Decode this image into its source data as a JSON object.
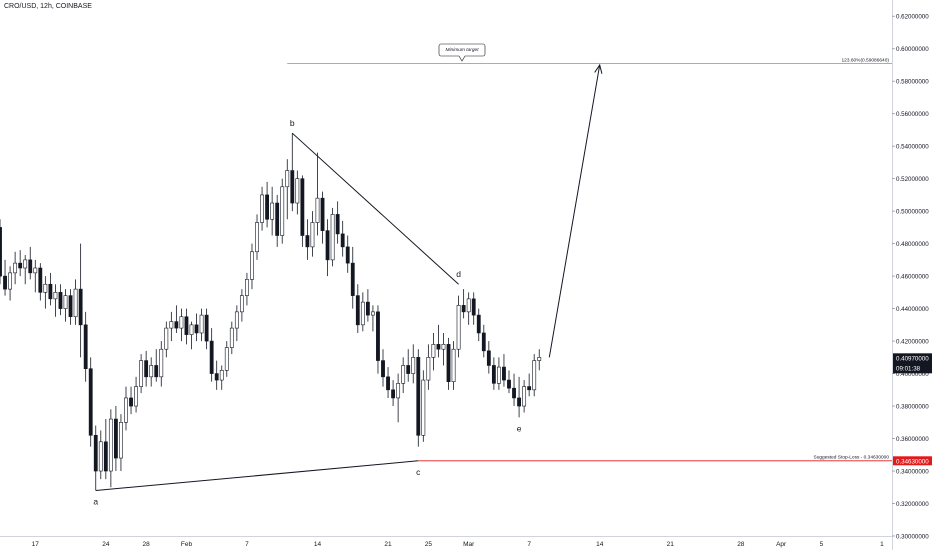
{
  "header": {
    "symbol_label": "CRO/USD, 12h, COINBASE"
  },
  "chart_data": {
    "type": "candlestick",
    "symbol": "CRO/USD",
    "interval": "12h",
    "exchange": "COINBASE",
    "y_axis": {
      "ylim": [
        0.3,
        0.63
      ],
      "ticks": [
        0.3,
        0.32,
        0.34,
        0.36,
        0.38,
        0.4,
        0.42,
        0.44,
        0.46,
        0.48,
        0.5,
        0.52,
        0.54,
        0.56,
        0.58,
        0.6,
        0.62
      ],
      "tick_labels": [
        "0.30000000",
        "0.32000000",
        "0.34000000",
        "0.36000000",
        "0.38000000",
        "0.40000000",
        "0.42000000",
        "0.44000000",
        "0.46000000",
        "0.48000000",
        "0.50000000",
        "0.52000000",
        "0.54000000",
        "0.56000000",
        "0.58000000",
        "0.60000000",
        "0.62000000"
      ],
      "position": "right"
    },
    "x_axis": {
      "start_label": "17",
      "ticks": [
        {
          "day": 0,
          "label": "17"
        },
        {
          "day": 7,
          "label": "24"
        },
        {
          "day": 11,
          "label": "28"
        },
        {
          "day": 15,
          "label": "Feb"
        },
        {
          "day": 21,
          "label": "7"
        },
        {
          "day": 28,
          "label": "14"
        },
        {
          "day": 35,
          "label": "21"
        },
        {
          "day": 39,
          "label": "25"
        },
        {
          "day": 43,
          "label": "Mar"
        },
        {
          "day": 49,
          "label": "7"
        },
        {
          "day": 56,
          "label": "14"
        },
        {
          "day": 63,
          "label": "21"
        },
        {
          "day": 70,
          "label": "28"
        },
        {
          "day": 74,
          "label": "Apr"
        },
        {
          "day": 78,
          "label": "5"
        },
        {
          "day": 84,
          "label": "1"
        }
      ],
      "day_range": [
        -3.5,
        85
      ]
    },
    "candles": [
      {
        "day": -3.5,
        "o": 0.49,
        "h": 0.495,
        "l": 0.455,
        "c": 0.46
      },
      {
        "day": -3.0,
        "o": 0.46,
        "h": 0.47,
        "l": 0.448,
        "c": 0.452
      },
      {
        "day": -2.5,
        "o": 0.452,
        "h": 0.466,
        "l": 0.445,
        "c": 0.462
      },
      {
        "day": -2.0,
        "o": 0.462,
        "h": 0.475,
        "l": 0.455,
        "c": 0.468
      },
      {
        "day": -1.5,
        "o": 0.468,
        "h": 0.476,
        "l": 0.46,
        "c": 0.465
      },
      {
        "day": -1.0,
        "o": 0.465,
        "h": 0.473,
        "l": 0.455,
        "c": 0.47
      },
      {
        "day": -0.5,
        "o": 0.47,
        "h": 0.478,
        "l": 0.458,
        "c": 0.462
      },
      {
        "day": 0.0,
        "o": 0.462,
        "h": 0.47,
        "l": 0.45,
        "c": 0.465
      },
      {
        "day": 0.5,
        "o": 0.465,
        "h": 0.468,
        "l": 0.445,
        "c": 0.45
      },
      {
        "day": 1.0,
        "o": 0.45,
        "h": 0.46,
        "l": 0.44,
        "c": 0.455
      },
      {
        "day": 1.5,
        "o": 0.455,
        "h": 0.462,
        "l": 0.442,
        "c": 0.446
      },
      {
        "day": 2.0,
        "o": 0.446,
        "h": 0.455,
        "l": 0.435,
        "c": 0.45
      },
      {
        "day": 2.5,
        "o": 0.45,
        "h": 0.455,
        "l": 0.436,
        "c": 0.44
      },
      {
        "day": 3.0,
        "o": 0.44,
        "h": 0.452,
        "l": 0.432,
        "c": 0.448
      },
      {
        "day": 3.5,
        "o": 0.448,
        "h": 0.452,
        "l": 0.43,
        "c": 0.435
      },
      {
        "day": 4.0,
        "o": 0.435,
        "h": 0.458,
        "l": 0.43,
        "c": 0.452
      },
      {
        "day": 4.5,
        "o": 0.452,
        "h": 0.48,
        "l": 0.41,
        "c": 0.43
      },
      {
        "day": 5.0,
        "o": 0.43,
        "h": 0.438,
        "l": 0.395,
        "c": 0.403
      },
      {
        "day": 5.5,
        "o": 0.403,
        "h": 0.41,
        "l": 0.355,
        "c": 0.362
      },
      {
        "day": 6.0,
        "o": 0.362,
        "h": 0.368,
        "l": 0.328,
        "c": 0.34
      },
      {
        "day": 6.5,
        "o": 0.34,
        "h": 0.365,
        "l": 0.335,
        "c": 0.358
      },
      {
        "day": 7.0,
        "o": 0.358,
        "h": 0.372,
        "l": 0.335,
        "c": 0.34
      },
      {
        "day": 7.5,
        "o": 0.34,
        "h": 0.378,
        "l": 0.33,
        "c": 0.372
      },
      {
        "day": 8.0,
        "o": 0.372,
        "h": 0.38,
        "l": 0.34,
        "c": 0.348
      },
      {
        "day": 8.5,
        "o": 0.348,
        "h": 0.375,
        "l": 0.34,
        "c": 0.37
      },
      {
        "day": 9.0,
        "o": 0.37,
        "h": 0.392,
        "l": 0.365,
        "c": 0.385
      },
      {
        "day": 9.5,
        "o": 0.385,
        "h": 0.392,
        "l": 0.375,
        "c": 0.38
      },
      {
        "day": 10.0,
        "o": 0.38,
        "h": 0.398,
        "l": 0.376,
        "c": 0.392
      },
      {
        "day": 10.5,
        "o": 0.392,
        "h": 0.412,
        "l": 0.388,
        "c": 0.408
      },
      {
        "day": 11.0,
        "o": 0.408,
        "h": 0.414,
        "l": 0.392,
        "c": 0.398
      },
      {
        "day": 11.5,
        "o": 0.398,
        "h": 0.41,
        "l": 0.392,
        "c": 0.405
      },
      {
        "day": 12.0,
        "o": 0.405,
        "h": 0.415,
        "l": 0.395,
        "c": 0.398
      },
      {
        "day": 12.5,
        "o": 0.398,
        "h": 0.42,
        "l": 0.392,
        "c": 0.415
      },
      {
        "day": 13.0,
        "o": 0.415,
        "h": 0.432,
        "l": 0.41,
        "c": 0.428
      },
      {
        "day": 13.5,
        "o": 0.428,
        "h": 0.438,
        "l": 0.42,
        "c": 0.432
      },
      {
        "day": 14.0,
        "o": 0.432,
        "h": 0.442,
        "l": 0.425,
        "c": 0.428
      },
      {
        "day": 14.5,
        "o": 0.428,
        "h": 0.44,
        "l": 0.42,
        "c": 0.435
      },
      {
        "day": 15.0,
        "o": 0.435,
        "h": 0.44,
        "l": 0.418,
        "c": 0.424
      },
      {
        "day": 15.5,
        "o": 0.424,
        "h": 0.432,
        "l": 0.415,
        "c": 0.43
      },
      {
        "day": 16.0,
        "o": 0.43,
        "h": 0.437,
        "l": 0.42,
        "c": 0.425
      },
      {
        "day": 16.5,
        "o": 0.425,
        "h": 0.44,
        "l": 0.42,
        "c": 0.436
      },
      {
        "day": 17.0,
        "o": 0.436,
        "h": 0.44,
        "l": 0.415,
        "c": 0.42
      },
      {
        "day": 17.5,
        "o": 0.42,
        "h": 0.428,
        "l": 0.395,
        "c": 0.4
      },
      {
        "day": 18.0,
        "o": 0.4,
        "h": 0.408,
        "l": 0.39,
        "c": 0.396
      },
      {
        "day": 18.5,
        "o": 0.396,
        "h": 0.405,
        "l": 0.39,
        "c": 0.402
      },
      {
        "day": 19.0,
        "o": 0.402,
        "h": 0.42,
        "l": 0.398,
        "c": 0.416
      },
      {
        "day": 19.5,
        "o": 0.416,
        "h": 0.432,
        "l": 0.412,
        "c": 0.428
      },
      {
        "day": 20.0,
        "o": 0.428,
        "h": 0.442,
        "l": 0.42,
        "c": 0.438
      },
      {
        "day": 20.5,
        "o": 0.438,
        "h": 0.452,
        "l": 0.432,
        "c": 0.448
      },
      {
        "day": 21.0,
        "o": 0.448,
        "h": 0.462,
        "l": 0.442,
        "c": 0.458
      },
      {
        "day": 21.5,
        "o": 0.458,
        "h": 0.48,
        "l": 0.452,
        "c": 0.475
      },
      {
        "day": 22.0,
        "o": 0.475,
        "h": 0.498,
        "l": 0.47,
        "c": 0.493
      },
      {
        "day": 22.5,
        "o": 0.493,
        "h": 0.515,
        "l": 0.488,
        "c": 0.51
      },
      {
        "day": 23.0,
        "o": 0.51,
        "h": 0.518,
        "l": 0.49,
        "c": 0.495
      },
      {
        "day": 23.5,
        "o": 0.495,
        "h": 0.515,
        "l": 0.485,
        "c": 0.505
      },
      {
        "day": 24.0,
        "o": 0.505,
        "h": 0.51,
        "l": 0.478,
        "c": 0.485
      },
      {
        "day": 24.5,
        "o": 0.485,
        "h": 0.52,
        "l": 0.48,
        "c": 0.515
      },
      {
        "day": 25.0,
        "o": 0.515,
        "h": 0.532,
        "l": 0.495,
        "c": 0.525
      },
      {
        "day": 25.5,
        "o": 0.525,
        "h": 0.548,
        "l": 0.5,
        "c": 0.505
      },
      {
        "day": 26.0,
        "o": 0.505,
        "h": 0.525,
        "l": 0.498,
        "c": 0.52
      },
      {
        "day": 26.5,
        "o": 0.52,
        "h": 0.522,
        "l": 0.478,
        "c": 0.485
      },
      {
        "day": 27.0,
        "o": 0.485,
        "h": 0.495,
        "l": 0.47,
        "c": 0.478
      },
      {
        "day": 27.5,
        "o": 0.478,
        "h": 0.5,
        "l": 0.472,
        "c": 0.493
      },
      {
        "day": 28.0,
        "o": 0.493,
        "h": 0.536,
        "l": 0.485,
        "c": 0.508
      },
      {
        "day": 28.5,
        "o": 0.508,
        "h": 0.512,
        "l": 0.48,
        "c": 0.488
      },
      {
        "day": 29.0,
        "o": 0.488,
        "h": 0.495,
        "l": 0.46,
        "c": 0.47
      },
      {
        "day": 29.5,
        "o": 0.47,
        "h": 0.502,
        "l": 0.466,
        "c": 0.498
      },
      {
        "day": 30.0,
        "o": 0.498,
        "h": 0.506,
        "l": 0.48,
        "c": 0.486
      },
      {
        "day": 30.5,
        "o": 0.486,
        "h": 0.494,
        "l": 0.472,
        "c": 0.478
      },
      {
        "day": 31.0,
        "o": 0.478,
        "h": 0.485,
        "l": 0.462,
        "c": 0.468
      },
      {
        "day": 31.5,
        "o": 0.468,
        "h": 0.478,
        "l": 0.44,
        "c": 0.448
      },
      {
        "day": 32.0,
        "o": 0.448,
        "h": 0.455,
        "l": 0.425,
        "c": 0.43
      },
      {
        "day": 32.5,
        "o": 0.43,
        "h": 0.45,
        "l": 0.426,
        "c": 0.444
      },
      {
        "day": 33.0,
        "o": 0.444,
        "h": 0.452,
        "l": 0.432,
        "c": 0.436
      },
      {
        "day": 33.5,
        "o": 0.436,
        "h": 0.442,
        "l": 0.426,
        "c": 0.438
      },
      {
        "day": 34.0,
        "o": 0.438,
        "h": 0.442,
        "l": 0.4,
        "c": 0.408
      },
      {
        "day": 34.5,
        "o": 0.408,
        "h": 0.415,
        "l": 0.392,
        "c": 0.398
      },
      {
        "day": 35.0,
        "o": 0.398,
        "h": 0.404,
        "l": 0.385,
        "c": 0.39
      },
      {
        "day": 35.5,
        "o": 0.39,
        "h": 0.396,
        "l": 0.38,
        "c": 0.385
      },
      {
        "day": 36.0,
        "o": 0.385,
        "h": 0.4,
        "l": 0.37,
        "c": 0.394
      },
      {
        "day": 36.5,
        "o": 0.394,
        "h": 0.41,
        "l": 0.388,
        "c": 0.405
      },
      {
        "day": 37.0,
        "o": 0.405,
        "h": 0.415,
        "l": 0.395,
        "c": 0.4
      },
      {
        "day": 37.5,
        "o": 0.4,
        "h": 0.418,
        "l": 0.394,
        "c": 0.41
      },
      {
        "day": 38.0,
        "o": 0.41,
        "h": 0.415,
        "l": 0.355,
        "c": 0.362
      },
      {
        "day": 38.5,
        "o": 0.362,
        "h": 0.402,
        "l": 0.358,
        "c": 0.396
      },
      {
        "day": 39.0,
        "o": 0.396,
        "h": 0.418,
        "l": 0.39,
        "c": 0.41
      },
      {
        "day": 39.5,
        "o": 0.41,
        "h": 0.425,
        "l": 0.402,
        "c": 0.418
      },
      {
        "day": 40.0,
        "o": 0.418,
        "h": 0.43,
        "l": 0.41,
        "c": 0.415
      },
      {
        "day": 40.5,
        "o": 0.415,
        "h": 0.425,
        "l": 0.405,
        "c": 0.418
      },
      {
        "day": 41.0,
        "o": 0.418,
        "h": 0.422,
        "l": 0.39,
        "c": 0.395
      },
      {
        "day": 41.5,
        "o": 0.395,
        "h": 0.42,
        "l": 0.39,
        "c": 0.415
      },
      {
        "day": 42.0,
        "o": 0.415,
        "h": 0.448,
        "l": 0.41,
        "c": 0.442
      },
      {
        "day": 42.5,
        "o": 0.442,
        "h": 0.452,
        "l": 0.434,
        "c": 0.438
      },
      {
        "day": 43.0,
        "o": 0.438,
        "h": 0.45,
        "l": 0.43,
        "c": 0.446
      },
      {
        "day": 43.5,
        "o": 0.446,
        "h": 0.45,
        "l": 0.43,
        "c": 0.436
      },
      {
        "day": 44.0,
        "o": 0.436,
        "h": 0.44,
        "l": 0.42,
        "c": 0.425
      },
      {
        "day": 44.5,
        "o": 0.425,
        "h": 0.43,
        "l": 0.41,
        "c": 0.414
      },
      {
        "day": 45.0,
        "o": 0.414,
        "h": 0.42,
        "l": 0.4,
        "c": 0.405
      },
      {
        "day": 45.5,
        "o": 0.405,
        "h": 0.41,
        "l": 0.39,
        "c": 0.394
      },
      {
        "day": 46.0,
        "o": 0.394,
        "h": 0.41,
        "l": 0.39,
        "c": 0.404
      },
      {
        "day": 46.5,
        "o": 0.404,
        "h": 0.412,
        "l": 0.392,
        "c": 0.396
      },
      {
        "day": 47.0,
        "o": 0.396,
        "h": 0.402,
        "l": 0.388,
        "c": 0.391
      },
      {
        "day": 47.5,
        "o": 0.391,
        "h": 0.4,
        "l": 0.38,
        "c": 0.385
      },
      {
        "day": 48.0,
        "o": 0.385,
        "h": 0.398,
        "l": 0.373,
        "c": 0.38
      },
      {
        "day": 48.5,
        "o": 0.38,
        "h": 0.396,
        "l": 0.376,
        "c": 0.392
      },
      {
        "day": 49.0,
        "o": 0.392,
        "h": 0.4,
        "l": 0.386,
        "c": 0.39
      },
      {
        "day": 49.5,
        "o": 0.39,
        "h": 0.412,
        "l": 0.386,
        "c": 0.408
      },
      {
        "day": 50.0,
        "o": 0.408,
        "h": 0.415,
        "l": 0.402,
        "c": 0.41
      }
    ],
    "drawings": {
      "pivots": [
        {
          "label": "a",
          "day": 6.0,
          "y": 0.328
        },
        {
          "label": "b",
          "day": 25.5,
          "y": 0.548
        },
        {
          "label": "c",
          "day": 38.0,
          "y": 0.3463
        },
        {
          "label": "d",
          "day": 42.0,
          "y": 0.455
        },
        {
          "label": "e",
          "day": 48.0,
          "y": 0.373
        }
      ],
      "trendlines": [
        {
          "from": {
            "day": 6.0,
            "y": 0.328
          },
          "to": {
            "day": 38.0,
            "y": 0.3463
          }
        },
        {
          "from": {
            "day": 25.5,
            "y": 0.548
          },
          "to": {
            "day": 42.0,
            "y": 0.455
          }
        }
      ],
      "arrow": {
        "from": {
          "day": 51.0,
          "y": 0.41
        },
        "to": {
          "day": 56.0,
          "y": 0.59
        }
      },
      "target_line": {
        "value": 0.5908664,
        "from_day": 25.0,
        "label": "123.60%(0.59086640)"
      },
      "target_callout": "Minimum target",
      "stop_loss_line": {
        "value": 0.3463,
        "from_day": 38.0,
        "color": "#e31a1c",
        "label": "Suggested Stop-Loss - 0.34630000"
      }
    },
    "price_badges": [
      {
        "value": 0.4097,
        "text": "0.40970000",
        "countdown": "09:01:38",
        "color": "#131722"
      },
      {
        "value": 0.3463,
        "text": "0.34630000",
        "color": "#e31a1c"
      }
    ],
    "colors": {
      "up_candle": "#ffffff",
      "down_candle": "#131722",
      "wick": "#131722",
      "drawing": "#131722",
      "stop_loss": "#e31a1c"
    }
  }
}
